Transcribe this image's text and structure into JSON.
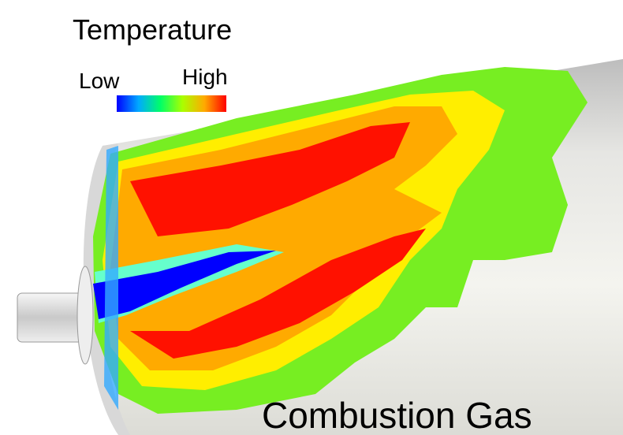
{
  "legend": {
    "title": "Temperature",
    "low_label": "Low",
    "high_label": "High"
  },
  "caption": "Combustion Gas"
}
